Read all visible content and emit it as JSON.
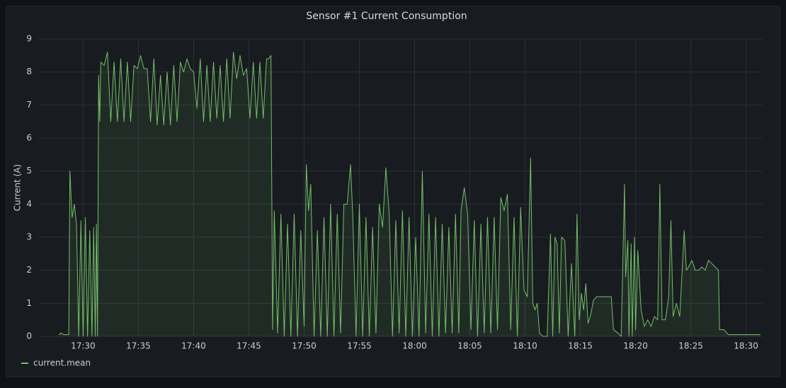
{
  "chart_data": {
    "type": "line",
    "title": "Sensor #1 Current Consumption",
    "ylabel": "Current (A)",
    "grid": true,
    "legend": "bottom-left",
    "xlim": [
      26.0,
      91.5
    ],
    "xticks": [
      {
        "value": 30,
        "label": "17:30"
      },
      {
        "value": 35,
        "label": "17:35"
      },
      {
        "value": 40,
        "label": "17:40"
      },
      {
        "value": 45,
        "label": "17:45"
      },
      {
        "value": 50,
        "label": "17:50"
      },
      {
        "value": 55,
        "label": "17:55"
      },
      {
        "value": 60,
        "label": "18:00"
      },
      {
        "value": 65,
        "label": "18:05"
      },
      {
        "value": 70,
        "label": "18:10"
      },
      {
        "value": 75,
        "label": "18:15"
      },
      {
        "value": 80,
        "label": "18:20"
      },
      {
        "value": 85,
        "label": "18:25"
      },
      {
        "value": 90,
        "label": "18:30"
      }
    ],
    "ylim": [
      0,
      9
    ],
    "yticks": [
      0,
      1,
      2,
      3,
      4,
      5,
      6,
      7,
      8,
      9
    ],
    "x": [
      27.8,
      28.0,
      28.25,
      28.5,
      28.7,
      28.8,
      29.0,
      29.2,
      29.4,
      29.6,
      29.8,
      30.0,
      30.2,
      30.4,
      30.6,
      30.8,
      30.95,
      31.1,
      31.2,
      31.3,
      31.4,
      31.5,
      31.6,
      31.9,
      32.2,
      32.5,
      32.8,
      33.1,
      33.4,
      33.7,
      34.0,
      34.3,
      34.6,
      34.9,
      35.2,
      35.5,
      35.8,
      36.1,
      36.4,
      36.7,
      37.0,
      37.3,
      37.6,
      37.9,
      38.2,
      38.5,
      38.8,
      39.1,
      39.4,
      39.7,
      40.0,
      40.3,
      40.6,
      40.9,
      41.2,
      41.5,
      41.8,
      42.1,
      42.4,
      42.7,
      43.0,
      43.3,
      43.6,
      43.9,
      44.2,
      44.5,
      44.8,
      45.1,
      45.4,
      45.7,
      46.0,
      46.3,
      46.6,
      46.8,
      47.0,
      47.15,
      47.3,
      47.6,
      47.9,
      48.2,
      48.5,
      48.8,
      49.1,
      49.4,
      49.7,
      50.0,
      50.2,
      50.4,
      50.6,
      50.9,
      51.2,
      51.5,
      51.8,
      52.1,
      52.4,
      52.7,
      53.0,
      53.3,
      53.6,
      53.9,
      54.2,
      54.4,
      54.7,
      55.0,
      55.3,
      55.6,
      55.9,
      56.2,
      56.5,
      56.8,
      57.1,
      57.4,
      57.7,
      58.0,
      58.3,
      58.6,
      58.9,
      59.2,
      59.5,
      59.8,
      60.1,
      60.4,
      60.7,
      61.0,
      61.3,
      61.6,
      61.9,
      62.2,
      62.5,
      62.8,
      63.1,
      63.4,
      63.7,
      64.0,
      64.2,
      64.5,
      64.8,
      65.1,
      65.4,
      65.7,
      66.0,
      66.3,
      66.6,
      66.9,
      67.2,
      67.5,
      67.8,
      68.1,
      68.4,
      68.7,
      69.0,
      69.3,
      69.6,
      69.9,
      70.2,
      70.5,
      70.7,
      70.9,
      71.1,
      71.3,
      71.6,
      72.0,
      72.3,
      72.5,
      72.7,
      72.9,
      73.1,
      73.3,
      73.6,
      73.9,
      74.2,
      74.5,
      74.7,
      74.9,
      75.1,
      75.3,
      75.5,
      75.7,
      75.9,
      76.2,
      76.5,
      76.9,
      77.4,
      77.8,
      78.0,
      78.4,
      78.7,
      79.0,
      79.1,
      79.3,
      79.4,
      79.6,
      79.7,
      79.9,
      80.0,
      80.2,
      80.5,
      80.8,
      81.1,
      81.4,
      81.7,
      82.0,
      82.2,
      82.4,
      82.7,
      83.0,
      83.2,
      83.4,
      83.7,
      84.0,
      84.4,
      84.6,
      84.8,
      85.1,
      85.4,
      85.7,
      86.0,
      86.3,
      86.6,
      86.9,
      87.2,
      87.5,
      87.6,
      88.0,
      88.4,
      89.0,
      90.0,
      91.3
    ],
    "series": [
      {
        "name": "current.mean",
        "color": "#73bf69",
        "values": [
          0.05,
          0.1,
          0.05,
          0.05,
          0.05,
          5.0,
          3.6,
          4.0,
          3.4,
          0,
          3.5,
          0,
          3.6,
          0,
          3.2,
          0,
          3.3,
          0,
          3.4,
          0,
          7.9,
          6.5,
          8.3,
          8.2,
          8.6,
          6.5,
          8.3,
          6.5,
          8.4,
          6.5,
          8.3,
          6.5,
          8.2,
          8.1,
          8.5,
          8.1,
          8.1,
          6.5,
          8.4,
          6.4,
          7.9,
          6.4,
          8.0,
          6.4,
          8.2,
          6.5,
          8.3,
          8.0,
          8.4,
          8.1,
          8.0,
          6.9,
          8.4,
          6.5,
          8.2,
          6.5,
          8.3,
          6.6,
          8.2,
          6.5,
          8.4,
          6.6,
          8.6,
          7.8,
          8.5,
          7.9,
          8.1,
          6.6,
          8.3,
          6.6,
          8.3,
          6.6,
          8.4,
          8.4,
          8.5,
          0.2,
          3.8,
          0.1,
          3.7,
          0,
          3.4,
          0,
          3.7,
          0,
          3.2,
          0.3,
          5.2,
          3.8,
          4.6,
          0,
          3.2,
          0,
          3.6,
          0,
          4.0,
          0,
          3.7,
          0.1,
          4.0,
          4.0,
          5.2,
          3.7,
          0,
          4.0,
          0,
          3.6,
          0,
          3.3,
          0.1,
          4.0,
          3.3,
          5.1,
          3.7,
          0,
          3.5,
          0.1,
          3.8,
          0,
          3.6,
          0,
          3.0,
          0,
          5.0,
          0.1,
          3.7,
          0,
          3.6,
          0,
          3.4,
          0.1,
          3.3,
          0.1,
          3.7,
          0.1,
          3.8,
          4.5,
          3.7,
          0.2,
          3.5,
          0,
          3.4,
          0.1,
          3.6,
          0.1,
          3.6,
          0.2,
          4.2,
          3.8,
          4.3,
          0.2,
          3.6,
          0,
          3.9,
          1.4,
          1.2,
          5.4,
          1.0,
          0.8,
          1.0,
          0.1,
          0,
          0,
          3.1,
          0,
          3.0,
          2.8,
          0.1,
          3.0,
          2.9,
          0,
          2.2,
          0,
          3.7,
          0.5,
          1.3,
          0.8,
          1.6,
          0.4,
          0.6,
          1.1,
          1.2,
          1.2,
          1.2,
          1.2,
          0.2,
          0.1,
          0,
          4.6,
          1.8,
          2.9,
          0,
          2.8,
          0,
          3.0,
          0.2,
          2.6,
          0.8,
          0.3,
          0.5,
          0.3,
          0.6,
          0.5,
          4.6,
          0.5,
          0.5,
          1.2,
          3.5,
          0.6,
          1.0,
          0.6,
          3.2,
          2.0,
          2.1,
          2.3,
          2.0,
          2.0,
          2.1,
          2.0,
          2.3,
          2.2,
          2.1,
          2.0,
          0.2,
          0.2,
          0.05,
          0.05,
          0.05,
          0.05
        ]
      }
    ]
  }
}
